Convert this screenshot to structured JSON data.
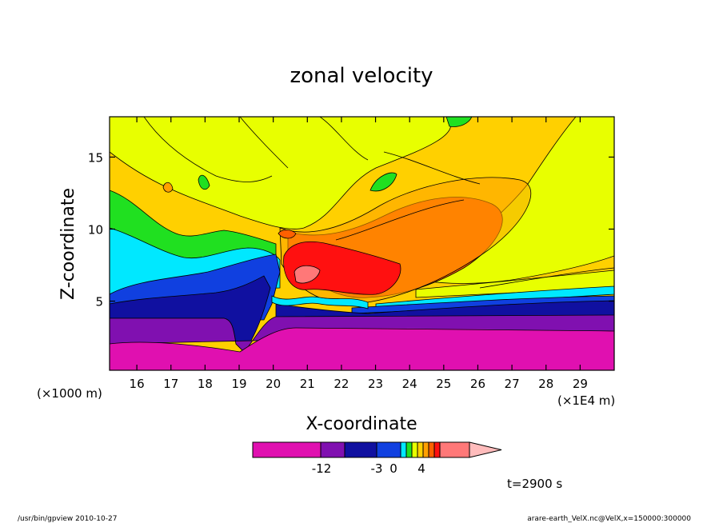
{
  "chart_data": {
    "type": "heatmap",
    "title": "zonal velocity",
    "xlabel": "X-coordinate",
    "ylabel": "Z-coordinate",
    "x_unit_left": "(×1000 m)",
    "x_unit_right": "(×1E4 m)",
    "time_label": "t=2900 s",
    "xlim": [
      15.2,
      30.0
    ],
    "ylim": [
      0.2,
      17.8
    ],
    "x_ticks": [
      16,
      17,
      18,
      19,
      20,
      21,
      22,
      23,
      24,
      25,
      26,
      27,
      28,
      29
    ],
    "y_ticks": [
      5,
      10,
      15
    ],
    "colorbar": {
      "colors": [
        "#e010b0",
        "#8010b0",
        "#1010a0",
        "#1040e0",
        "#00e8ff",
        "#20e020",
        "#e8ff00",
        "#ffd000",
        "#ffa000",
        "#ff6000",
        "#ff1010",
        "#ff7878",
        "#ffbcbc"
      ],
      "tick_labels": [
        "-12",
        "-3",
        "0",
        "4"
      ]
    },
    "regions": [
      {
        "level": "above-4",
        "description": "red core near x=21-23, z=6-9"
      },
      {
        "level": "positive",
        "description": "orange plume extending from x=21 to x=27 at z=7-13"
      },
      {
        "level": "near-zero",
        "description": "yellow/gold upper layer z>9"
      },
      {
        "level": "negative",
        "description": "blue/purple lower layer z=3-8 west of x=20"
      },
      {
        "level": "below -12",
        "description": "magenta bottom layer z<3"
      }
    ]
  },
  "footer": {
    "left": "/usr/bin/gpview   2010-10-27",
    "right": "arare-earth_VelX.nc@VelX,x=150000:300000"
  }
}
